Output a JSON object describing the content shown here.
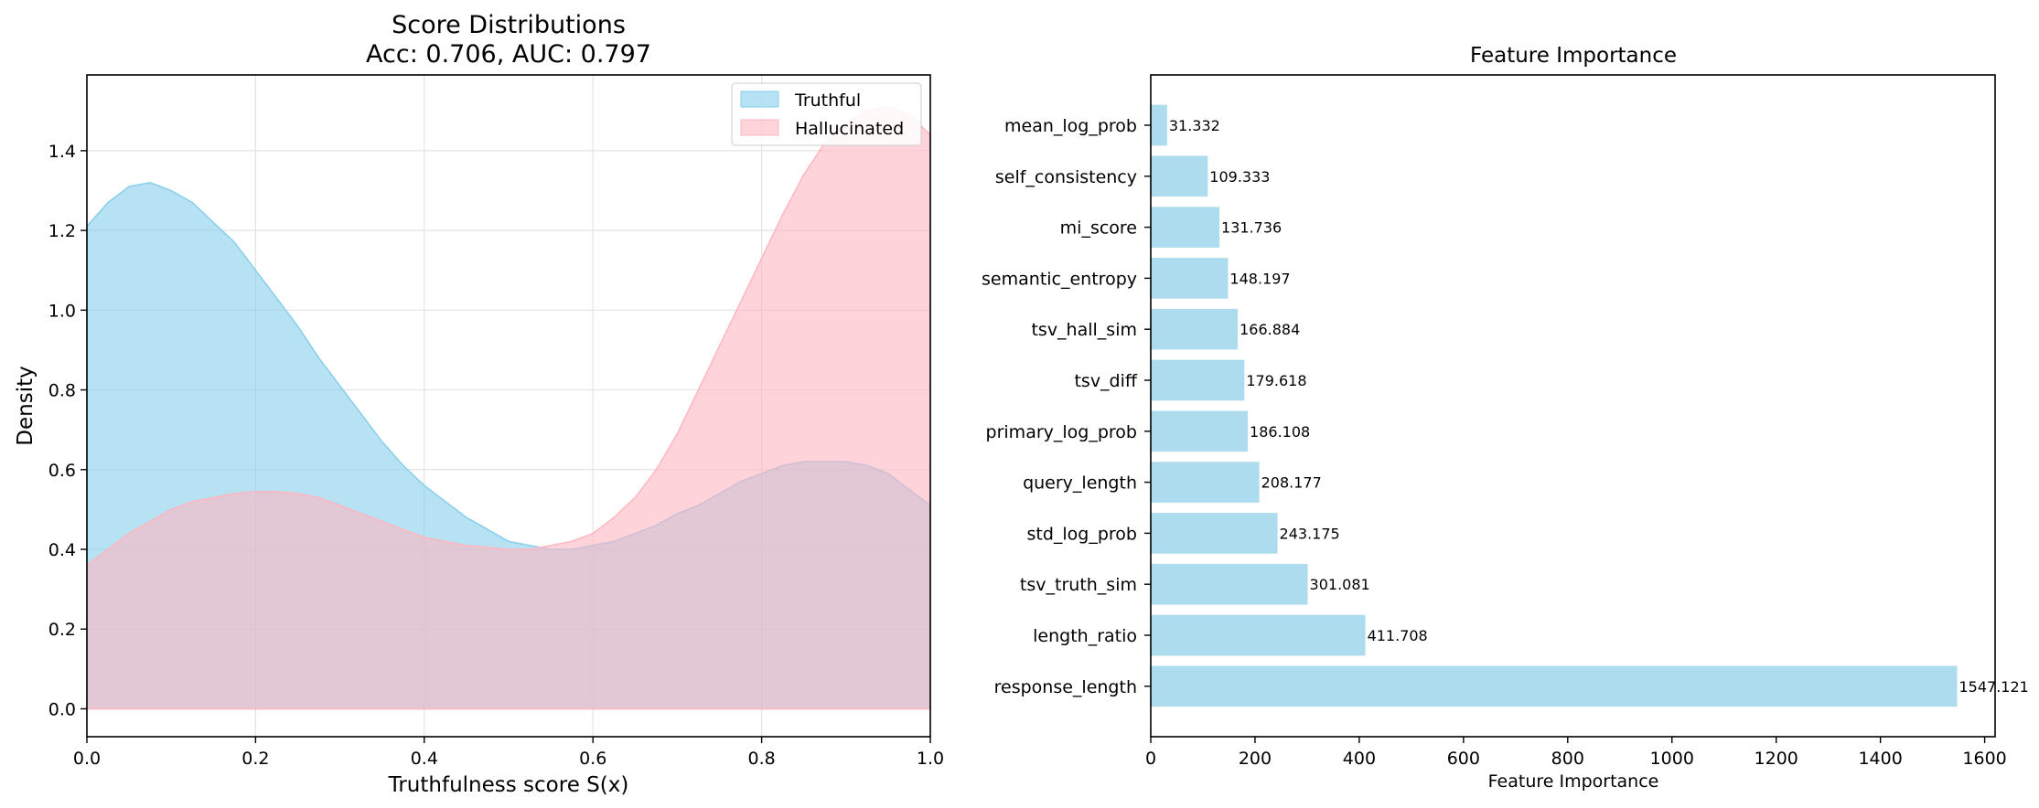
{
  "chart_data": [
    {
      "type": "area",
      "title": "Score Distributions",
      "subtitle": "Acc: 0.706, AUC: 0.797",
      "xlabel": "Truthfulness score S(x)",
      "ylabel": "Density",
      "xlim": [
        0.0,
        1.0
      ],
      "ylim": [
        -0.07,
        1.59
      ],
      "xticks": [
        "0.0",
        "0.2",
        "0.4",
        "0.6",
        "0.8",
        "1.0"
      ],
      "yticks": [
        "0.0",
        "0.2",
        "0.4",
        "0.6",
        "0.8",
        "1.0",
        "1.2",
        "1.4"
      ],
      "grid": true,
      "legend_position": "top-right",
      "series": [
        {
          "name": "Truthful",
          "color": "#87CEEB",
          "x": [
            0.0,
            0.025,
            0.05,
            0.075,
            0.1,
            0.125,
            0.15,
            0.175,
            0.2,
            0.225,
            0.25,
            0.275,
            0.3,
            0.325,
            0.35,
            0.375,
            0.4,
            0.425,
            0.45,
            0.475,
            0.5,
            0.525,
            0.55,
            0.575,
            0.6,
            0.625,
            0.65,
            0.675,
            0.7,
            0.725,
            0.75,
            0.775,
            0.8,
            0.825,
            0.85,
            0.875,
            0.9,
            0.925,
            0.95,
            0.975,
            1.0
          ],
          "y": [
            1.21,
            1.27,
            1.31,
            1.32,
            1.3,
            1.27,
            1.22,
            1.17,
            1.1,
            1.03,
            0.96,
            0.88,
            0.81,
            0.74,
            0.67,
            0.61,
            0.56,
            0.52,
            0.48,
            0.45,
            0.42,
            0.41,
            0.4,
            0.4,
            0.41,
            0.42,
            0.44,
            0.46,
            0.49,
            0.51,
            0.54,
            0.57,
            0.59,
            0.61,
            0.62,
            0.62,
            0.62,
            0.61,
            0.59,
            0.55,
            0.51
          ]
        },
        {
          "name": "Hallucinated",
          "color": "#FFB6C1",
          "x": [
            0.0,
            0.025,
            0.05,
            0.075,
            0.1,
            0.125,
            0.15,
            0.175,
            0.2,
            0.225,
            0.25,
            0.275,
            0.3,
            0.325,
            0.35,
            0.375,
            0.4,
            0.425,
            0.45,
            0.475,
            0.5,
            0.525,
            0.55,
            0.575,
            0.6,
            0.625,
            0.65,
            0.675,
            0.7,
            0.725,
            0.75,
            0.775,
            0.8,
            0.825,
            0.85,
            0.875,
            0.9,
            0.925,
            0.95,
            0.975,
            1.0
          ],
          "y": [
            0.36,
            0.4,
            0.44,
            0.47,
            0.5,
            0.52,
            0.53,
            0.54,
            0.545,
            0.545,
            0.54,
            0.53,
            0.51,
            0.49,
            0.47,
            0.45,
            0.43,
            0.42,
            0.41,
            0.405,
            0.4,
            0.4,
            0.41,
            0.42,
            0.44,
            0.48,
            0.53,
            0.6,
            0.69,
            0.8,
            0.91,
            1.02,
            1.13,
            1.24,
            1.34,
            1.42,
            1.47,
            1.5,
            1.51,
            1.49,
            1.44
          ]
        }
      ]
    },
    {
      "type": "bar",
      "orientation": "horizontal",
      "title": "Feature Importance",
      "xlabel": "Feature Importance",
      "ylabel": "",
      "xlim": [
        0,
        1620
      ],
      "xticks": [
        0,
        200,
        400,
        600,
        800,
        1000,
        1200,
        1400,
        1600
      ],
      "grid": false,
      "color": "#ADDCEF",
      "categories": [
        "mean_log_prob",
        "self_consistency",
        "mi_score",
        "semantic_entropy",
        "tsv_hall_sim",
        "tsv_diff",
        "primary_log_prob",
        "query_length",
        "std_log_prob",
        "tsv_truth_sim",
        "length_ratio",
        "response_length"
      ],
      "values": [
        31.332,
        109.333,
        131.736,
        148.197,
        166.884,
        179.618,
        186.108,
        208.177,
        243.175,
        301.081,
        411.708,
        1547.121
      ],
      "value_labels": [
        "31.332",
        "109.333",
        "131.736",
        "148.197",
        "166.884",
        "179.618",
        "186.108",
        "208.177",
        "243.175",
        "301.081",
        "411.708",
        "1547.121"
      ]
    }
  ]
}
